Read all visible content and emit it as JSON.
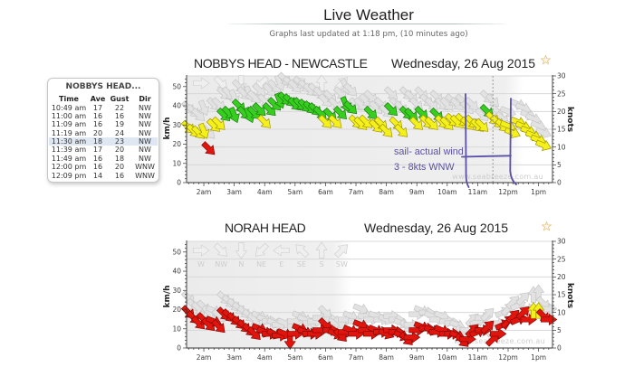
{
  "page": {
    "title": "Live Weather",
    "updated": "Graphs last updated at 1:18 pm, (10 minutes ago)"
  },
  "tooltip": {
    "title": "NOBBYS HEAD...",
    "columns": [
      "Time",
      "Ave",
      "Gust",
      "Dir"
    ],
    "rows": [
      [
        "10:49 am",
        "17",
        "22",
        "NW"
      ],
      [
        "11:00 am",
        "16",
        "16",
        "NW"
      ],
      [
        "11:09 am",
        "16",
        "19",
        "NW"
      ],
      [
        "11:19 am",
        "20",
        "24",
        "NW"
      ],
      [
        "11:30 am",
        "18",
        "23",
        "NW"
      ],
      [
        "11:39 am",
        "17",
        "20",
        "NW"
      ],
      [
        "11:49 am",
        "16",
        "18",
        "NW"
      ],
      [
        "12:00 pm",
        "16",
        "20",
        "WNW"
      ],
      [
        "12:09 pm",
        "14",
        "16",
        "WNW"
      ]
    ],
    "highlighted_row": 4
  },
  "colors": {
    "y": {
      "fill": "#f4f01c",
      "stroke": "#a39600"
    },
    "g": {
      "fill": "#36cf1f",
      "stroke": "#1d7a0f"
    },
    "r": {
      "fill": "#e2150e",
      "stroke": "#860a05"
    },
    "gust": {
      "fill": "#e2e2e2",
      "stroke": "#c6c6c6"
    },
    "legend": {
      "fill": "#efefef",
      "stroke": "#d0d0d0"
    },
    "annotation": "#5a50a6",
    "favourite_star": "#e4c283"
  },
  "chart_data": [
    {
      "type": "scatter",
      "subtype": "wind-direction-arrows",
      "title": "NOBBYS HEAD - NEWCASTLE",
      "date": "Wednesday, 26 Aug 2015",
      "xlabel": "",
      "ylabel_left": "km/h",
      "ylabel_right": "knots",
      "xlim_minutes": [
        86,
        807.5
      ],
      "ylim_knots": [
        0,
        30
      ],
      "kmh_per_knot": 1.852,
      "y_left_ticks": [
        0,
        10,
        20,
        30,
        40,
        50
      ],
      "y_right_ticks": [
        0,
        5,
        10,
        15,
        20,
        25,
        30
      ],
      "x_ticks": [
        {
          "minutes": 120,
          "label": "2am"
        },
        {
          "minutes": 180,
          "label": "3am"
        },
        {
          "minutes": 240,
          "label": "4am"
        },
        {
          "minutes": 300,
          "label": "5am"
        },
        {
          "minutes": 360,
          "label": "6am"
        },
        {
          "minutes": 420,
          "label": "7am"
        },
        {
          "minutes": 480,
          "label": "8am"
        },
        {
          "minutes": 540,
          "label": "9am"
        },
        {
          "minutes": 600,
          "label": "10am"
        },
        {
          "minutes": 660,
          "label": "11am"
        },
        {
          "minutes": 720,
          "label": "12pm"
        },
        {
          "minutes": 780,
          "label": "1pm"
        }
      ],
      "grid": true,
      "hover_minutes": 690,
      "watermark": "www.seabreeze.com.au",
      "annotation": {
        "lines": [
          "sail- actual wind",
          "3 - 8kts WNW"
        ]
      },
      "fields": [
        "minutes",
        "avg_knots",
        "gust_knots",
        "dir",
        "color"
      ],
      "points": [
        [
          90,
          15.5,
          21,
          "NW",
          "y"
        ],
        [
          100,
          14.5,
          20,
          "NW",
          "y"
        ],
        [
          110,
          14,
          19,
          "NW",
          "y"
        ],
        [
          120,
          14.5,
          21,
          "NNW",
          "y"
        ],
        [
          130,
          9.5,
          14,
          "NW",
          "r"
        ],
        [
          140,
          16,
          22,
          "NW",
          "y"
        ],
        [
          150,
          16.5,
          22,
          "NW",
          "y"
        ],
        [
          160,
          19,
          25,
          "NW",
          "g"
        ],
        [
          170,
          19.5,
          25,
          "NW",
          "g"
        ],
        [
          180,
          19,
          24,
          "NNW",
          "g"
        ],
        [
          190,
          21.5,
          27,
          "NW",
          "g"
        ],
        [
          200,
          19.5,
          25,
          "NW",
          "g"
        ],
        [
          210,
          19,
          25,
          "NNW",
          "g"
        ],
        [
          220,
          19.5,
          24,
          "NW",
          "g"
        ],
        [
          230,
          20.5,
          26,
          "NW",
          "g"
        ],
        [
          240,
          17,
          23,
          "NW",
          "y"
        ],
        [
          250,
          20.5,
          26,
          "NW",
          "g"
        ],
        [
          260,
          22,
          27,
          "NW",
          "g"
        ],
        [
          270,
          23,
          28,
          "NNW",
          "g"
        ],
        [
          280,
          23.5,
          29,
          "NW",
          "g"
        ],
        [
          290,
          23,
          28,
          "NW",
          "g"
        ],
        [
          300,
          22,
          27,
          "NW",
          "g"
        ],
        [
          310,
          22,
          28,
          "NW",
          "g"
        ],
        [
          320,
          21.5,
          27,
          "NW",
          "g"
        ],
        [
          330,
          21,
          26,
          "NW",
          "g"
        ],
        [
          340,
          20.5,
          26,
          "NW",
          "g"
        ],
        [
          350,
          19.5,
          25,
          "NW",
          "g"
        ],
        [
          360,
          17,
          23,
          "NW",
          "y"
        ],
        [
          370,
          19,
          24,
          "NW",
          "g"
        ],
        [
          380,
          17,
          22,
          "NW",
          "y"
        ],
        [
          390,
          19.5,
          25,
          "NW",
          "g"
        ],
        [
          400,
          22,
          27,
          "NNW",
          "g"
        ],
        [
          410,
          21,
          26,
          "NW",
          "g"
        ],
        [
          420,
          17,
          22,
          "NW",
          "y"
        ],
        [
          430,
          16.5,
          22,
          "NW",
          "y"
        ],
        [
          440,
          17,
          23,
          "NW",
          "y"
        ],
        [
          450,
          19.5,
          24,
          "NW",
          "g"
        ],
        [
          460,
          15.8,
          21,
          "NW",
          "y"
        ],
        [
          470,
          16.5,
          22,
          "NW",
          "y"
        ],
        [
          480,
          14.5,
          20,
          "NW",
          "y"
        ],
        [
          490,
          20.5,
          25,
          "NW",
          "g"
        ],
        [
          500,
          16.5,
          22,
          "NW",
          "y"
        ],
        [
          510,
          14.5,
          21,
          "NW",
          "y"
        ],
        [
          520,
          19.5,
          25,
          "NW",
          "g"
        ],
        [
          530,
          19,
          24,
          "NW",
          "g"
        ],
        [
          540,
          16.5,
          22,
          "NW",
          "y"
        ],
        [
          550,
          19.5,
          25,
          "NW",
          "g"
        ],
        [
          560,
          17,
          23,
          "NW",
          "y"
        ],
        [
          570,
          16.5,
          22,
          "NW",
          "y"
        ],
        [
          580,
          19,
          24,
          "NW",
          "g"
        ],
        [
          590,
          17,
          22,
          "NW",
          "y"
        ],
        [
          600,
          16.5,
          22,
          "NW",
          "y"
        ],
        [
          610,
          17.5,
          23,
          "NW",
          "y"
        ],
        [
          620,
          17,
          22,
          "NW",
          "y"
        ],
        [
          630,
          17.5,
          23,
          "NW",
          "y"
        ],
        [
          640,
          16.5,
          21,
          "NW",
          "y"
        ],
        [
          649,
          17,
          22,
          "NW",
          "y"
        ],
        [
          660,
          16,
          16,
          "NW",
          "y"
        ],
        [
          669,
          16,
          19,
          "NW",
          "y"
        ],
        [
          679,
          20,
          24,
          "NW",
          "g"
        ],
        [
          690,
          18,
          23,
          "NW",
          "y"
        ],
        [
          699,
          17,
          20,
          "NW",
          "y"
        ],
        [
          709,
          16,
          18,
          "NW",
          "y"
        ],
        [
          720,
          16,
          20,
          "WNW",
          "y"
        ],
        [
          729,
          14,
          16,
          "WNW",
          "y"
        ],
        [
          740,
          17,
          22,
          "WNW",
          "y"
        ],
        [
          750,
          15.8,
          21,
          "WNW",
          "y"
        ],
        [
          760,
          14.5,
          19,
          "WNW",
          "y"
        ],
        [
          770,
          13.2,
          18,
          "WNW",
          "y"
        ],
        [
          780,
          12,
          16,
          "WNW",
          "y"
        ],
        [
          790,
          10.5,
          14,
          "WNW",
          "y"
        ]
      ]
    },
    {
      "type": "scatter",
      "subtype": "wind-direction-arrows",
      "title": "NORAH HEAD",
      "date": "Wednesday, 26 Aug 2015",
      "xlabel": "",
      "ylabel_left": "km/h",
      "ylabel_right": "knots",
      "xlim_minutes": [
        86,
        807.5
      ],
      "ylim_knots": [
        0,
        30
      ],
      "kmh_per_knot": 1.852,
      "y_left_ticks": [
        0,
        10,
        20,
        30,
        40,
        50
      ],
      "y_right_ticks": [
        0,
        5,
        10,
        15,
        20,
        25,
        30
      ],
      "x_ticks": [
        {
          "minutes": 120,
          "label": "2am"
        },
        {
          "minutes": 180,
          "label": "3am"
        },
        {
          "minutes": 240,
          "label": "4am"
        },
        {
          "minutes": 300,
          "label": "5am"
        },
        {
          "minutes": 360,
          "label": "6am"
        },
        {
          "minutes": 420,
          "label": "7am"
        },
        {
          "minutes": 480,
          "label": "8am"
        },
        {
          "minutes": 540,
          "label": "9am"
        },
        {
          "minutes": 600,
          "label": "10am"
        },
        {
          "minutes": 660,
          "label": "11am"
        },
        {
          "minutes": 720,
          "label": "12pm"
        },
        {
          "minutes": 780,
          "label": "1pm"
        }
      ],
      "grid": true,
      "legend": {
        "position": "top-left",
        "dirs": [
          "W",
          "NW",
          "N",
          "NE",
          "E",
          "SE",
          "S",
          "SW"
        ]
      },
      "watermark": "www.seabreeze.com.au",
      "fields": [
        "minutes",
        "avg_knots",
        "gust_knots",
        "dir",
        "color"
      ],
      "points": [
        [
          90,
          10,
          14,
          "NW",
          "r"
        ],
        [
          100,
          8.5,
          12,
          "NW",
          "r"
        ],
        [
          110,
          7,
          11,
          "NW",
          "r"
        ],
        [
          120,
          8,
          11.5,
          "NW",
          "r"
        ],
        [
          130,
          6.5,
          10,
          "NW",
          "r"
        ],
        [
          140,
          7.5,
          10.5,
          "WNW",
          "r"
        ],
        [
          150,
          6,
          9,
          "NW",
          "r"
        ],
        [
          160,
          9.5,
          14,
          "NW",
          "r"
        ],
        [
          170,
          9,
          13,
          "NW",
          "r"
        ],
        [
          180,
          8,
          12,
          "NW",
          "r"
        ],
        [
          190,
          7,
          11,
          "NW",
          "r"
        ],
        [
          200,
          6,
          10,
          "NW",
          "r"
        ],
        [
          210,
          5,
          9,
          "NW",
          "r"
        ],
        [
          220,
          4,
          8,
          "NW",
          "r"
        ],
        [
          230,
          5.5,
          9,
          "WNW",
          "r"
        ],
        [
          240,
          4.5,
          8,
          "WNW",
          "r"
        ],
        [
          250,
          4,
          7.5,
          "W",
          "r"
        ],
        [
          260,
          4,
          7,
          "WNW",
          "r"
        ],
        [
          270,
          3.5,
          6.5,
          "W",
          "r"
        ],
        [
          280,
          4,
          7,
          "WNW",
          "r"
        ],
        [
          290,
          2,
          5,
          "N",
          "r"
        ],
        [
          300,
          4,
          7.5,
          "W",
          "r"
        ],
        [
          310,
          5.5,
          9,
          "WNW",
          "r"
        ],
        [
          320,
          4.5,
          8,
          "WNW",
          "r"
        ],
        [
          330,
          4,
          7,
          "W",
          "r"
        ],
        [
          340,
          4,
          7.5,
          "W",
          "r"
        ],
        [
          350,
          5,
          8.5,
          "W",
          "r"
        ],
        [
          360,
          6.5,
          10,
          "NW",
          "r"
        ],
        [
          370,
          5,
          8,
          "W",
          "r"
        ],
        [
          380,
          4,
          7,
          "WNW",
          "r"
        ],
        [
          390,
          3.5,
          7,
          "NW",
          "r"
        ],
        [
          400,
          4.5,
          8,
          "W",
          "r"
        ],
        [
          410,
          5,
          9,
          "WNW",
          "r"
        ],
        [
          420,
          4,
          7.5,
          "W",
          "r"
        ],
        [
          430,
          6.5,
          11,
          "WNW",
          "r"
        ],
        [
          440,
          5,
          9,
          "W",
          "r"
        ],
        [
          450,
          4,
          8,
          "W",
          "r"
        ],
        [
          460,
          5,
          9,
          "WNW",
          "r"
        ],
        [
          470,
          4.5,
          8,
          "W",
          "r"
        ],
        [
          480,
          4,
          8,
          "WNW",
          "r"
        ],
        [
          490,
          5,
          9,
          "W",
          "r"
        ],
        [
          500,
          4.5,
          8,
          "W",
          "r"
        ],
        [
          510,
          3.5,
          7,
          "WNW",
          "r"
        ],
        [
          520,
          2.5,
          6,
          "NW",
          "r"
        ],
        [
          530,
          3,
          6.5,
          "W",
          "r"
        ],
        [
          540,
          5,
          9.5,
          "W",
          "r"
        ],
        [
          550,
          6,
          10.5,
          "WNW",
          "r"
        ],
        [
          560,
          5.5,
          10,
          "W",
          "r"
        ],
        [
          570,
          5,
          9,
          "WNW",
          "r"
        ],
        [
          580,
          4.5,
          8,
          "W",
          "r"
        ],
        [
          590,
          5,
          9,
          "WNW",
          "r"
        ],
        [
          600,
          4,
          7.5,
          "W",
          "r"
        ],
        [
          610,
          4,
          7,
          "W",
          "r"
        ],
        [
          620,
          3.5,
          6.5,
          "WNW",
          "r"
        ],
        [
          630,
          2,
          4.5,
          "NW",
          "r"
        ],
        [
          640,
          2.5,
          5,
          "W",
          "r"
        ],
        [
          650,
          5,
          8,
          "SW",
          "r"
        ],
        [
          660,
          4.5,
          7.5,
          "WSW",
          "r"
        ],
        [
          670,
          5,
          8.5,
          "W",
          "r"
        ],
        [
          680,
          6,
          9.5,
          "SW",
          "r"
        ],
        [
          690,
          2.5,
          5,
          "SW",
          "r"
        ],
        [
          700,
          4,
          7,
          "W",
          "r"
        ],
        [
          710,
          6.5,
          10,
          "WSW",
          "r"
        ],
        [
          720,
          7.5,
          11,
          "SW",
          "r"
        ],
        [
          730,
          9,
          13,
          "SW",
          "r"
        ],
        [
          740,
          8,
          12,
          "WSW",
          "r"
        ],
        [
          750,
          10,
          14,
          "SW",
          "r"
        ],
        [
          760,
          8,
          11,
          "W",
          "r"
        ],
        [
          770,
          10.5,
          15,
          "S",
          "y"
        ],
        [
          780,
          10.5,
          15.5,
          "S",
          "y"
        ],
        [
          790,
          9,
          12.5,
          "NW",
          "r"
        ],
        [
          800,
          8,
          11,
          "W",
          "r"
        ]
      ]
    }
  ]
}
